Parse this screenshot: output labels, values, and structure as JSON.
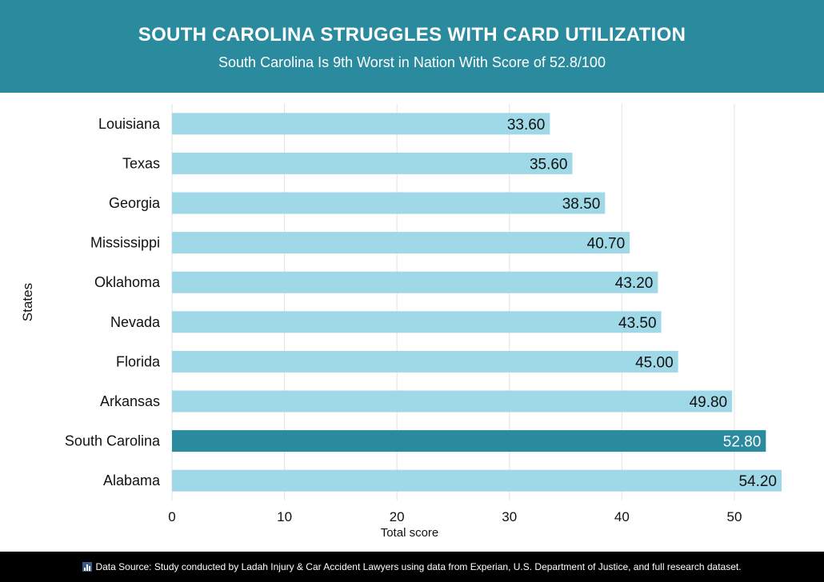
{
  "header": {
    "title": "SOUTH CAROLINA STRUGGLES WITH CARD UTILIZATION",
    "subtitle": "South Carolina Is 9th Worst in Nation With Score of 52.8/100"
  },
  "footer": {
    "icon": "bar-chart-icon",
    "text": "Data Source: Study conducted by Ladah Injury & Car Accident Lawyers using data from Experian, U.S. Department of Justice, and full research dataset."
  },
  "colors": {
    "header_bg": "#2a8a9e",
    "bar_default": "#9fd8e6",
    "bar_highlight": "#2a8a9e",
    "footer_bg": "#000000"
  },
  "chart_data": {
    "type": "bar",
    "orientation": "horizontal",
    "categories": [
      "Louisiana",
      "Texas",
      "Georgia",
      "Mississippi",
      "Oklahoma",
      "Nevada",
      "Florida",
      "Arkansas",
      "South Carolina",
      "Alabama"
    ],
    "values": [
      33.6,
      35.6,
      38.5,
      40.7,
      43.2,
      43.5,
      45.0,
      49.8,
      52.8,
      54.2
    ],
    "value_labels": [
      "33.60",
      "35.60",
      "38.50",
      "40.70",
      "43.20",
      "43.50",
      "45.00",
      "49.80",
      "52.80",
      "54.20"
    ],
    "highlight": "South Carolina",
    "xlabel": "Total score",
    "ylabel": "States",
    "xticks": [
      0,
      10,
      20,
      30,
      40,
      50
    ],
    "xlim": [
      0,
      54.2
    ],
    "grid": "vertical"
  }
}
